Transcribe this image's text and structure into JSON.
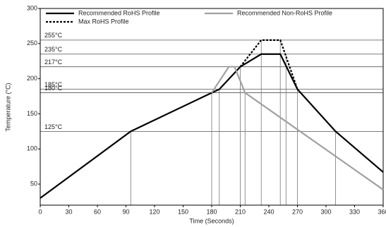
{
  "chart_data": {
    "type": "line",
    "x_label": "Time (Seconds)",
    "y_label": "Temperature (°C)",
    "xlim": [
      0,
      360
    ],
    "xticks": [
      0,
      30,
      60,
      90,
      120,
      150,
      180,
      210,
      240,
      270,
      300,
      330,
      360
    ],
    "ylim": [
      20,
      300
    ],
    "yticks": [
      50,
      100,
      150,
      200,
      250,
      300
    ],
    "series": [
      {
        "name": "Recommended RoHS Profile",
        "color": "#000000",
        "style": "solid",
        "x": [
          0,
          95,
          180,
          188,
          210,
          232,
          252,
          270,
          310,
          360
        ],
        "values": [
          30,
          125,
          180,
          185,
          217,
          235,
          235,
          185,
          125,
          67
        ]
      },
      {
        "name": "Recommended Non-RoHS Profile",
        "color": "#a0a0a0",
        "style": "solid",
        "x": [
          180,
          198,
          204,
          215,
          360
        ],
        "values": [
          180,
          217,
          217,
          180,
          42
        ]
      },
      {
        "name": "Max RoHS Profile",
        "color": "#000000",
        "style": "dotted",
        "x": [
          210,
          232,
          252,
          270
        ],
        "values": [
          217,
          255,
          255,
          185
        ]
      }
    ],
    "reference_lines": [
      {
        "value": 255,
        "label": "255°C"
      },
      {
        "value": 235,
        "label": "235°C"
      },
      {
        "value": 217,
        "label": "217°C"
      },
      {
        "value": 185,
        "label": "185°C"
      },
      {
        "value": 180,
        "label": "180°C"
      },
      {
        "value": 125,
        "label": "125°C"
      }
    ],
    "drop_lines": [
      [
        95,
        125
      ],
      [
        180,
        180
      ],
      [
        188,
        185
      ],
      [
        210,
        217
      ],
      [
        215,
        180
      ],
      [
        232,
        255
      ],
      [
        252,
        255
      ],
      [
        258,
        235
      ],
      [
        270,
        185
      ],
      [
        310,
        125
      ]
    ]
  }
}
